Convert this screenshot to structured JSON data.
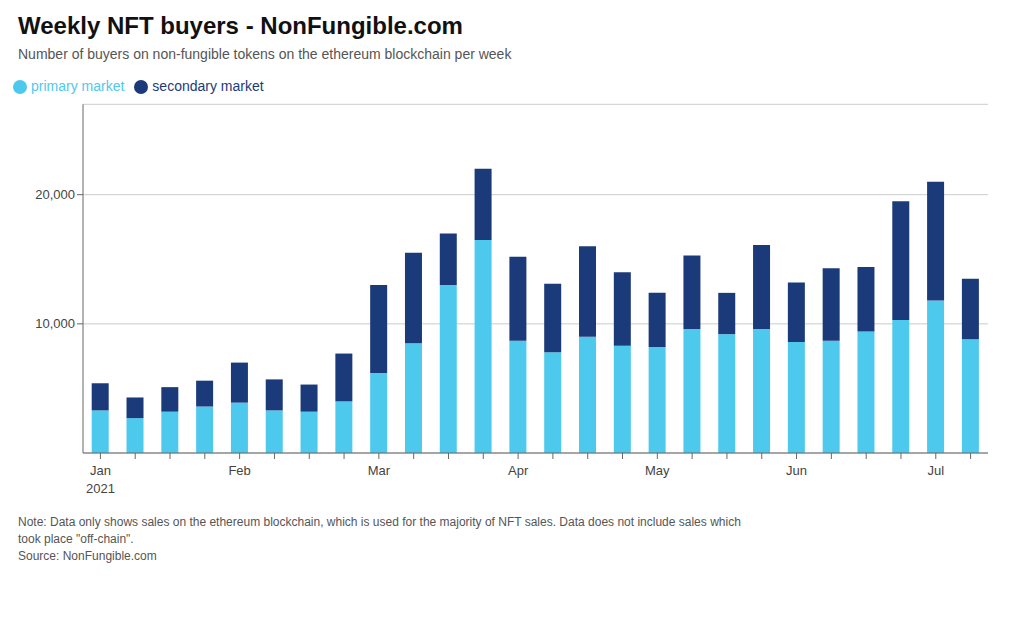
{
  "chart_data": {
    "type": "bar",
    "title": "Weekly NFT buyers - NonFungible.com",
    "subtitle": "Number of buyers on non-fungible tokens on the ethereum blockchain per week",
    "categories": [
      "Jan",
      null,
      null,
      null,
      "Feb",
      null,
      null,
      null,
      "Mar",
      null,
      null,
      null,
      "Apr",
      null,
      null,
      null,
      "May",
      null,
      null,
      null,
      "Jun",
      null,
      null,
      null,
      "Jul",
      null
    ],
    "series": [
      {
        "name": "primary market",
        "color": "#4EC9EE",
        "values": [
          3300,
          2700,
          3200,
          3600,
          3900,
          3300,
          3200,
          4000,
          6200,
          8500,
          13000,
          16500,
          8700,
          7800,
          9000,
          8300,
          8200,
          9600,
          9200,
          9600,
          8600,
          8700,
          9400,
          10300,
          11800,
          8800
        ]
      },
      {
        "name": "secondary market",
        "color": "#1B3A7A",
        "values": [
          2100,
          1600,
          1900,
          2000,
          3100,
          2400,
          2100,
          3700,
          6800,
          7000,
          4000,
          5500,
          6500,
          5300,
          7000,
          5700,
          4200,
          5700,
          3200,
          6500,
          4600,
          5600,
          5000,
          9200,
          9200,
          4700
        ]
      }
    ],
    "stacked": true,
    "ylim": [
      0,
      27000
    ],
    "yticks": [
      {
        "value": 10000,
        "label": "10,000"
      },
      {
        "value": 20000,
        "label": "20,000"
      }
    ],
    "grid": true,
    "legend": "upper left",
    "annotations": [
      "2021"
    ],
    "notes": [
      "Note: Data only shows sales on the ethereum blockchain, which is used for the majority of NFT sales. Data does not include sales which",
      "took place \"off-chain\".",
      "Source: NonFungible.com"
    ]
  }
}
